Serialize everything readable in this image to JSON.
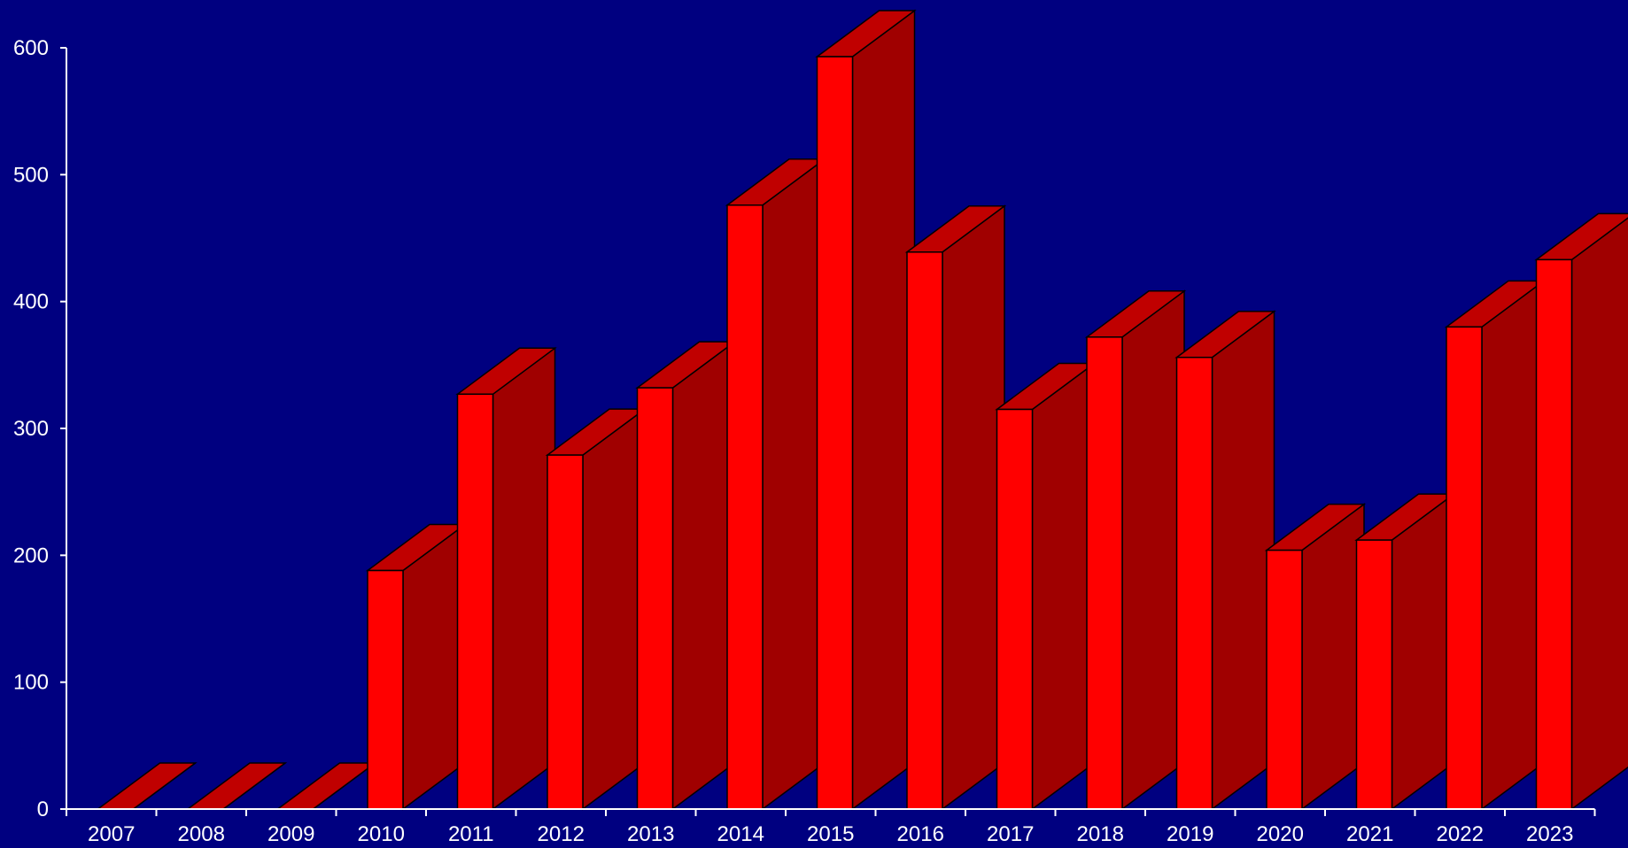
{
  "chart_data": {
    "type": "bar",
    "style": "3d",
    "categories": [
      "2007",
      "2008",
      "2009",
      "2010",
      "2011",
      "2012",
      "2013",
      "2014",
      "2015",
      "2016",
      "2017",
      "2018",
      "2019",
      "2020",
      "2021",
      "2022",
      "2023"
    ],
    "values": [
      0,
      0,
      0,
      188,
      327,
      279,
      332,
      476,
      593,
      439,
      315,
      372,
      356,
      204,
      212,
      380,
      433
    ],
    "ylim": [
      0,
      600
    ],
    "yticks": [
      0,
      100,
      200,
      300,
      400,
      500,
      600
    ],
    "title": "",
    "xlabel": "",
    "ylabel": "",
    "grid": false,
    "legend": "none",
    "colors": {
      "background": "#000080",
      "bar_front": "#ff0000",
      "bar_top": "#c00000",
      "bar_side": "#a00000",
      "axis": "#ffffff",
      "text": "#ffffff",
      "outline": "#000000"
    }
  }
}
